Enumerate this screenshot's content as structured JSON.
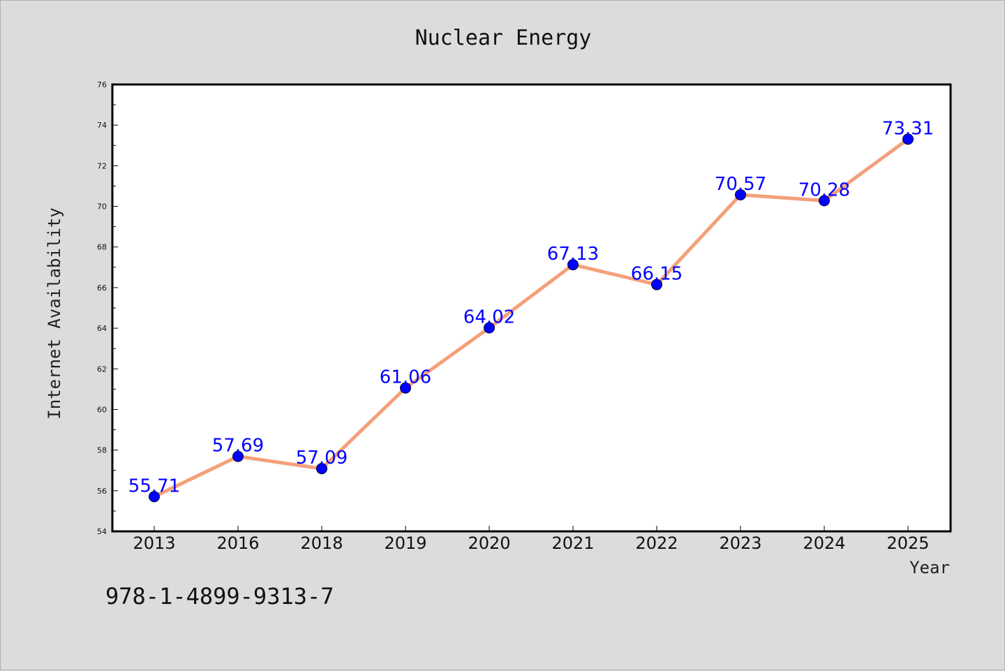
{
  "chart_data": {
    "type": "line",
    "title": "Nuclear Energy",
    "xlabel": "Year",
    "ylabel": "Internet Availability",
    "categories": [
      "2013",
      "2016",
      "2018",
      "2019",
      "2020",
      "2021",
      "2022",
      "2023",
      "2024",
      "2025"
    ],
    "series": [
      {
        "values": [
          55.71,
          57.69,
          57.09,
          61.06,
          64.02,
          67.13,
          66.15,
          70.57,
          70.28,
          73.31
        ],
        "data_labels": [
          "55.71",
          "57.69",
          "57.09",
          "61.06",
          "64.02",
          "67.13",
          "66.15",
          "70.57",
          "70.28",
          "73.31"
        ],
        "line_color": "#f4a07a",
        "marker_color": "#0000ff"
      }
    ],
    "ylim": [
      54,
      76
    ],
    "yticks": [
      "54",
      "56",
      "58",
      "60",
      "62",
      "64",
      "66",
      "68",
      "70",
      "72",
      "74",
      "76"
    ],
    "grid": false,
    "legend": "none",
    "background_color": "#dcdcdc",
    "plot_background_color": "#ffffff"
  },
  "annotations": {
    "isbn": "978-1-4899-9313-7"
  }
}
